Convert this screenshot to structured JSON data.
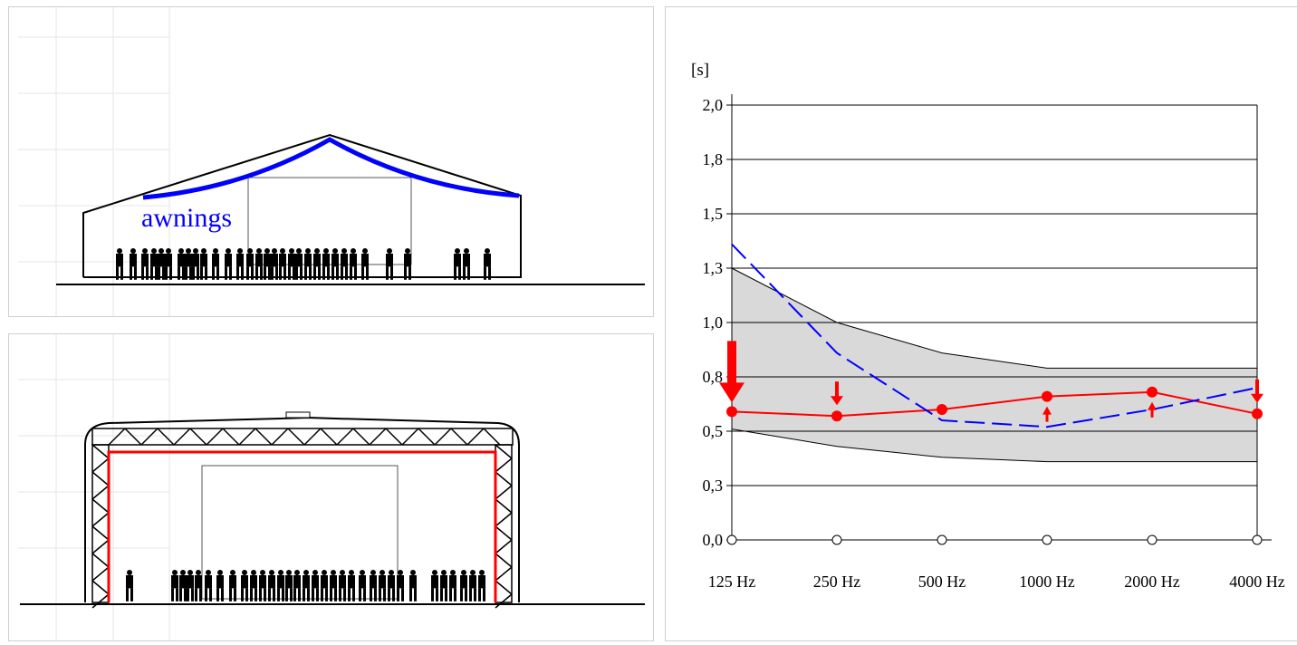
{
  "top_section": {
    "label": "awnings",
    "label_color": "#0000ff"
  },
  "bottom_section": {
    "frame_highlight_color": "#ff0000"
  },
  "chart_data": {
    "type": "line",
    "ylabel": "[s]",
    "categories": [
      "125 Hz",
      "250 Hz",
      "500 Hz",
      "1000 Hz",
      "2000 Hz",
      "4000 Hz"
    ],
    "yticks": [
      "0,0",
      "0,3",
      "0,5",
      "0,8",
      "1,0",
      "1,3",
      "1,5",
      "1,8",
      "2,0"
    ],
    "ylim": [
      0,
      2.0
    ],
    "grid": true,
    "series": [
      {
        "style": "solid-with-markers",
        "color": "#ff0000",
        "values": [
          0.59,
          0.57,
          0.6,
          0.66,
          0.68,
          0.58
        ]
      },
      {
        "style": "dashed",
        "color": "#0000ff",
        "values": [
          1.36,
          0.86,
          0.55,
          0.52,
          0.6,
          0.7
        ]
      }
    ],
    "band": {
      "color": "#d9d9d9",
      "upper": [
        1.25,
        1.0,
        0.86,
        0.79,
        0.79,
        0.79
      ],
      "lower": [
        0.51,
        0.43,
        0.38,
        0.36,
        0.36,
        0.36
      ]
    },
    "arrows": [
      {
        "category": "125 Hz",
        "direction": "down",
        "size": "large"
      },
      {
        "category": "250 Hz",
        "direction": "down",
        "size": "small"
      },
      {
        "category": "1000 Hz",
        "direction": "up",
        "size": "small"
      },
      {
        "category": "2000 Hz",
        "direction": "up",
        "size": "small"
      },
      {
        "category": "4000 Hz",
        "direction": "down",
        "size": "small"
      }
    ]
  }
}
